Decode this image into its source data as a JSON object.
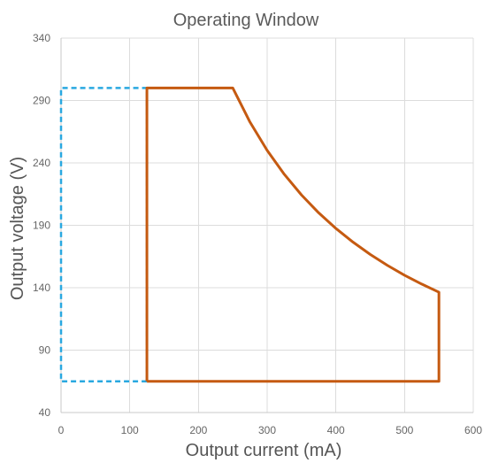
{
  "chart_data": {
    "type": "line",
    "title": "Operating Window",
    "xlabel": "Output current (mA)",
    "ylabel": "Output voltage (V)",
    "xlim": [
      0,
      600
    ],
    "ylim": [
      40,
      340
    ],
    "xticks": [
      0,
      100,
      200,
      300,
      400,
      500,
      600
    ],
    "yticks": [
      40,
      90,
      140,
      190,
      240,
      290,
      340
    ],
    "grid": true,
    "legend": "none",
    "series": [
      {
        "style": "solid",
        "color": "#c55a11",
        "points": [
          [
            125,
            65
          ],
          [
            125,
            300
          ],
          [
            250,
            300
          ],
          [
            275,
            272.7
          ],
          [
            300,
            250.0
          ],
          [
            325,
            230.8
          ],
          [
            350,
            214.3
          ],
          [
            375,
            200.0
          ],
          [
            400,
            187.5
          ],
          [
            425,
            176.5
          ],
          [
            450,
            166.7
          ],
          [
            475,
            157.9
          ],
          [
            500,
            150.0
          ],
          [
            525,
            142.9
          ],
          [
            550,
            136.4
          ],
          [
            550,
            65
          ],
          [
            125,
            65
          ]
        ]
      },
      {
        "style": "dashed",
        "color": "#29a8e0",
        "points": [
          [
            125,
            65
          ],
          [
            0,
            65
          ],
          [
            0,
            300
          ],
          [
            125,
            300
          ],
          [
            125,
            65
          ]
        ]
      }
    ]
  }
}
